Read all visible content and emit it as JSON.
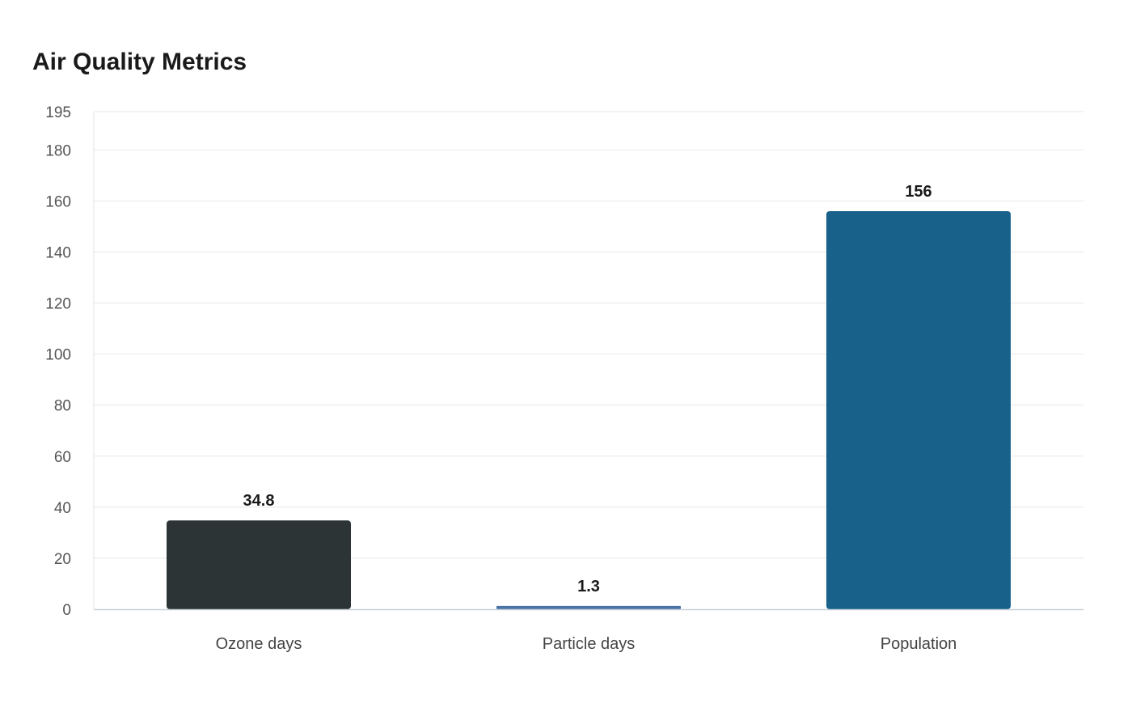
{
  "chart_data": {
    "type": "bar",
    "title": "Air Quality Metrics",
    "xlabel": "",
    "ylabel": "",
    "categories": [
      "Ozone days",
      "Particle days",
      "Population"
    ],
    "values": [
      34.8,
      1.3,
      156
    ],
    "data_labels": [
      "34.8",
      "1.3",
      "156"
    ],
    "colors": [
      "#2d3436",
      "#4a74a8",
      "#17618a"
    ],
    "ylim": [
      0,
      195
    ],
    "yticks": [
      0,
      20,
      40,
      60,
      80,
      100,
      120,
      140,
      160,
      180,
      195
    ],
    "grid": true,
    "legend": "none"
  }
}
